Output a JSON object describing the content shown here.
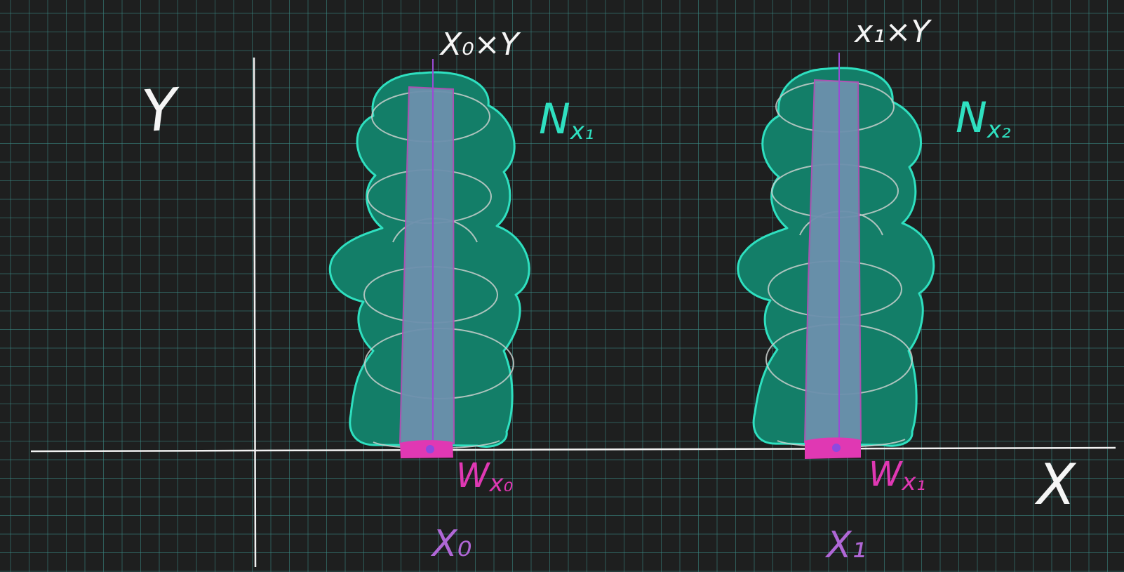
{
  "labels": {
    "y_axis": "Y",
    "x_axis": "X",
    "fiber_0": "X₀×Y",
    "fiber_1": "x₁×Y",
    "neighborhood_1": "N",
    "neighborhood_1_sub": "x₁",
    "neighborhood_2": "N",
    "neighborhood_2_sub": "x₂",
    "w_0": "W",
    "w_0_sub": "x₀",
    "w_1": "W",
    "w_1_sub": "x₁",
    "point_0": "X₀",
    "point_1": "X₁"
  },
  "colors": {
    "background": "#1e1f1f",
    "grid": "#3a8c87",
    "axis": "#f2f2f2",
    "neighborhood_fill": "#137e68",
    "neighborhood_stroke": "#2fe0c0",
    "tube_fill": "#6c90ad",
    "tube_stroke": "#b34fb5",
    "fiber_line": "#9b4ad6",
    "base_set": "#e038b3",
    "neighborhood_label": "#2fe0c0",
    "w_label": "#e038b3",
    "point_label": "#b067d6",
    "text": "#f5f5f5"
  }
}
